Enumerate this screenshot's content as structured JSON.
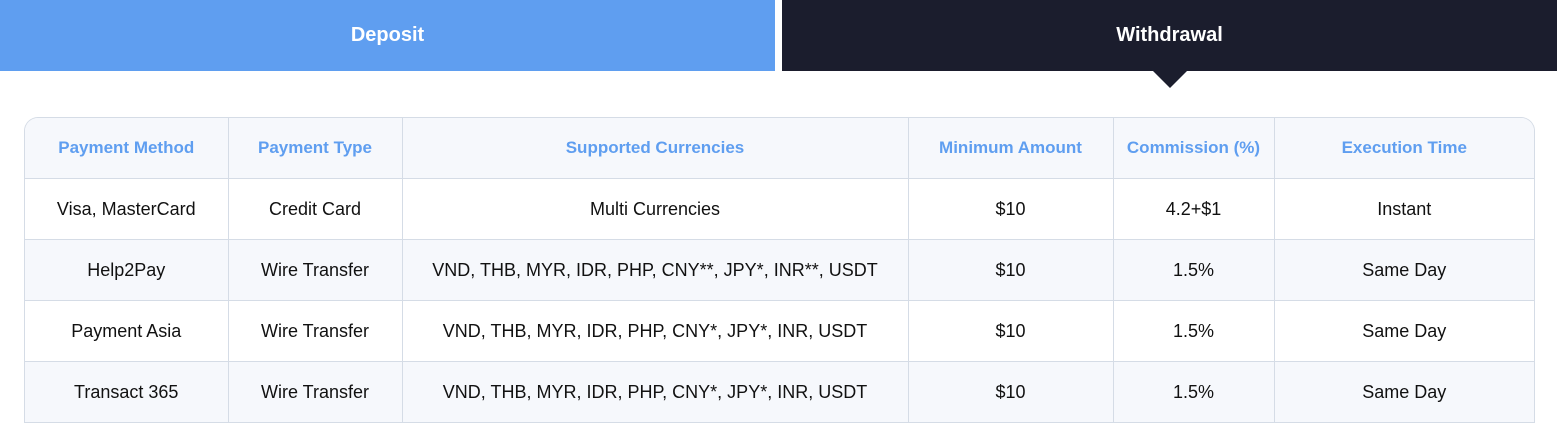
{
  "tabs": {
    "deposit": "Deposit",
    "withdrawal": "Withdrawal",
    "active": "Withdrawal"
  },
  "colors": {
    "deposit_tab": "#5f9ef0",
    "withdrawal_tab": "#1b1d2d",
    "header_text": "#5f9ef0"
  },
  "table": {
    "headers": [
      "Payment Method",
      "Payment Type",
      "Supported Currencies",
      "Minimum Amount",
      "Commission (%)",
      "Execution Time"
    ],
    "rows": [
      [
        "Visa, MasterCard",
        "Credit Card",
        "Multi Currencies",
        "$10",
        "4.2+$1",
        "Instant"
      ],
      [
        "Help2Pay",
        "Wire Transfer",
        "VND, THB, MYR, IDR, PHP, CNY**, JPY*, INR**, USDT",
        "$10",
        "1.5%",
        "Same Day"
      ],
      [
        "Payment Asia",
        "Wire Transfer",
        "VND, THB, MYR, IDR, PHP, CNY*, JPY*, INR, USDT",
        "$10",
        "1.5%",
        "Same Day"
      ],
      [
        "Transact 365",
        "Wire Transfer",
        "VND, THB, MYR, IDR, PHP, CNY*, JPY*, INR, USDT",
        "$10",
        "1.5%",
        "Same Day"
      ]
    ]
  }
}
